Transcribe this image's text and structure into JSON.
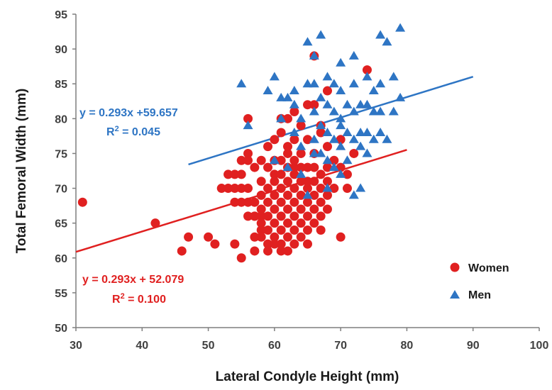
{
  "chart_data": {
    "type": "scatter",
    "xlabel": "Lateral Condyle Height (mm)",
    "ylabel": "Total Femoral Width (mm)",
    "xlim": [
      30,
      100
    ],
    "ylim": [
      50,
      95
    ],
    "xticks": [
      "30",
      "40",
      "50",
      "60",
      "70",
      "80",
      "90",
      "100"
    ],
    "yticks": [
      "50",
      "55",
      "60",
      "65",
      "70",
      "75",
      "80",
      "85",
      "90",
      "95"
    ],
    "grid": false,
    "legend_position": "bottom-right",
    "series": [
      {
        "name": "Women",
        "marker": "circle",
        "color": "#e02020",
        "points": [
          [
            31,
            68
          ],
          [
            42,
            65
          ],
          [
            46,
            61
          ],
          [
            47,
            63
          ],
          [
            50,
            63
          ],
          [
            51,
            62
          ],
          [
            54,
            62
          ],
          [
            55,
            60
          ],
          [
            56,
            80
          ],
          [
            52,
            70
          ],
          [
            53,
            70
          ],
          [
            54,
            70
          ],
          [
            55,
            70
          ],
          [
            56,
            70
          ],
          [
            53,
            72
          ],
          [
            54,
            72
          ],
          [
            55,
            72
          ],
          [
            55,
            74
          ],
          [
            56,
            74
          ],
          [
            57,
            73
          ],
          [
            56,
            75
          ],
          [
            54,
            68
          ],
          [
            55,
            68
          ],
          [
            56,
            68
          ],
          [
            57,
            68
          ],
          [
            57,
            66
          ],
          [
            58,
            66
          ],
          [
            58,
            64
          ],
          [
            57,
            63
          ],
          [
            57,
            61
          ],
          [
            58,
            71
          ],
          [
            58,
            69
          ],
          [
            58,
            67
          ],
          [
            58,
            65
          ],
          [
            58,
            63
          ],
          [
            59,
            70
          ],
          [
            59,
            68
          ],
          [
            59,
            66
          ],
          [
            59,
            64
          ],
          [
            59,
            62
          ],
          [
            60,
            71
          ],
          [
            60,
            69
          ],
          [
            60,
            67
          ],
          [
            60,
            65
          ],
          [
            60,
            63
          ],
          [
            60,
            62
          ],
          [
            61,
            72
          ],
          [
            61,
            70
          ],
          [
            61,
            68
          ],
          [
            61,
            66
          ],
          [
            61,
            64
          ],
          [
            61,
            62
          ],
          [
            62,
            73
          ],
          [
            62,
            71
          ],
          [
            62,
            69
          ],
          [
            62,
            67
          ],
          [
            62,
            65
          ],
          [
            62,
            61
          ],
          [
            63,
            72
          ],
          [
            63,
            70
          ],
          [
            63,
            68
          ],
          [
            63,
            66
          ],
          [
            63,
            64
          ],
          [
            64,
            71
          ],
          [
            64,
            69
          ],
          [
            64,
            67
          ],
          [
            64,
            65
          ],
          [
            64,
            63
          ],
          [
            65,
            70
          ],
          [
            65,
            68
          ],
          [
            65,
            66
          ],
          [
            65,
            64
          ],
          [
            65,
            62
          ],
          [
            58,
            74
          ],
          [
            59,
            76
          ],
          [
            60,
            77
          ],
          [
            61,
            78
          ],
          [
            62,
            76
          ],
          [
            63,
            77
          ],
          [
            64,
            79
          ],
          [
            63,
            81
          ],
          [
            62,
            80
          ],
          [
            61,
            80
          ],
          [
            60,
            74
          ],
          [
            61,
            74
          ],
          [
            62,
            75
          ],
          [
            63,
            74
          ],
          [
            64,
            75
          ],
          [
            65,
            77
          ],
          [
            65,
            73
          ],
          [
            66,
            71
          ],
          [
            66,
            69
          ],
          [
            66,
            67
          ],
          [
            66,
            65
          ],
          [
            67,
            70
          ],
          [
            67,
            68
          ],
          [
            67,
            66
          ],
          [
            67,
            64
          ],
          [
            68,
            69
          ],
          [
            68,
            67
          ],
          [
            68,
            71
          ],
          [
            69,
            70
          ],
          [
            69,
            74
          ],
          [
            70,
            73
          ],
          [
            70,
            77
          ],
          [
            70,
            63
          ],
          [
            71,
            72
          ],
          [
            71,
            70
          ],
          [
            72,
            75
          ],
          [
            65,
            82
          ],
          [
            66,
            82
          ],
          [
            67,
            79
          ],
          [
            66,
            89
          ],
          [
            68,
            84
          ],
          [
            74,
            87
          ],
          [
            67,
            78
          ],
          [
            68,
            76
          ],
          [
            66,
            75
          ],
          [
            57,
            66
          ],
          [
            56,
            66
          ],
          [
            59,
            73
          ],
          [
            60,
            72
          ],
          [
            63,
            73
          ],
          [
            64,
            73
          ],
          [
            65,
            71
          ],
          [
            66,
            73
          ],
          [
            67,
            72
          ],
          [
            68,
            73
          ],
          [
            62,
            63
          ],
          [
            63,
            62
          ],
          [
            61,
            61
          ],
          [
            59,
            61
          ]
        ]
      },
      {
        "name": "Men",
        "marker": "triangle",
        "color": "#2e75c4",
        "points": [
          [
            55,
            85
          ],
          [
            56,
            79
          ],
          [
            59,
            84
          ],
          [
            60,
            86
          ],
          [
            61,
            80
          ],
          [
            62,
            83
          ],
          [
            63,
            82
          ],
          [
            63,
            78
          ],
          [
            64,
            80
          ],
          [
            64,
            76
          ],
          [
            65,
            85
          ],
          [
            65,
            91
          ],
          [
            66,
            89
          ],
          [
            66,
            85
          ],
          [
            66,
            81
          ],
          [
            66,
            77
          ],
          [
            67,
            92
          ],
          [
            67,
            83
          ],
          [
            67,
            79
          ],
          [
            67,
            75
          ],
          [
            68,
            82
          ],
          [
            68,
            78
          ],
          [
            68,
            74
          ],
          [
            68,
            70
          ],
          [
            69,
            85
          ],
          [
            69,
            81
          ],
          [
            69,
            77
          ],
          [
            69,
            73
          ],
          [
            70,
            88
          ],
          [
            70,
            84
          ],
          [
            70,
            80
          ],
          [
            70,
            76
          ],
          [
            70,
            72
          ],
          [
            71,
            82
          ],
          [
            71,
            78
          ],
          [
            71,
            74
          ],
          [
            72,
            89
          ],
          [
            72,
            85
          ],
          [
            72,
            81
          ],
          [
            72,
            77
          ],
          [
            72,
            69
          ],
          [
            73,
            82
          ],
          [
            73,
            78
          ],
          [
            73,
            70
          ],
          [
            74,
            86
          ],
          [
            74,
            82
          ],
          [
            74,
            78
          ],
          [
            74,
            75
          ],
          [
            75,
            81
          ],
          [
            75,
            77
          ],
          [
            76,
            92
          ],
          [
            76,
            85
          ],
          [
            76,
            81
          ],
          [
            76,
            78
          ],
          [
            77,
            91
          ],
          [
            77,
            77
          ],
          [
            78,
            86
          ],
          [
            78,
            81
          ],
          [
            79,
            93
          ],
          [
            79,
            83
          ],
          [
            60,
            74
          ],
          [
            62,
            73
          ],
          [
            64,
            72
          ],
          [
            65,
            69
          ],
          [
            66,
            75
          ],
          [
            61,
            83
          ],
          [
            63,
            84
          ],
          [
            68,
            86
          ],
          [
            70,
            79
          ],
          [
            73,
            76
          ],
          [
            75,
            84
          ]
        ]
      }
    ],
    "trendlines": [
      {
        "series": "Men",
        "color": "#2e75c4",
        "x_range": [
          47,
          90
        ],
        "slope": 0.293,
        "intercept": 59.657,
        "equation": "y = 0.293x +59.657",
        "r2_prefix": "R",
        "r2_sup": "2",
        "r2_value": " = 0.045"
      },
      {
        "series": "Women",
        "color": "#e02020",
        "x_range": [
          30,
          80
        ],
        "slope": 0.293,
        "intercept": 52.079,
        "equation": "y = 0.293x + 52.079",
        "r2_prefix": "R",
        "r2_sup": "2",
        "r2_value": " = 0.100"
      }
    ]
  }
}
